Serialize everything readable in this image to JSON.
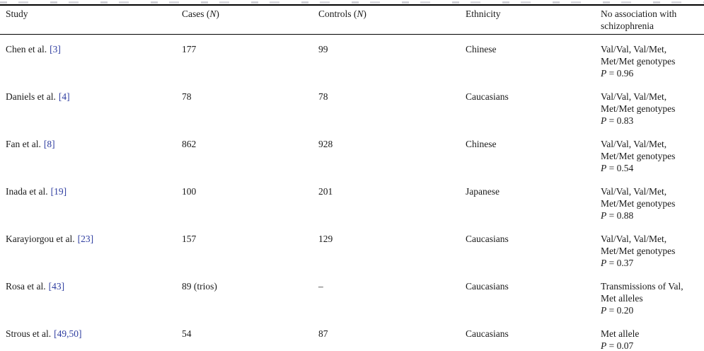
{
  "link_color": "#2e3da0",
  "table": {
    "headers": {
      "study": "Study",
      "cases_pre": "Cases (",
      "cases_n": "N",
      "cases_post": ")",
      "controls_pre": "Controls (",
      "controls_n": "N",
      "controls_post": ")",
      "ethnicity": "Ethnicity",
      "association_line1": "No association with",
      "association_line2": "schizophrenia"
    },
    "rows": [
      {
        "study": "Chen et al.",
        "ref": "[3]",
        "cases": "177",
        "controls": "99",
        "ethnicity": "Chinese",
        "assoc": {
          "lines": [
            "Val/Val, Val/Met,",
            "Met/Met genotypes"
          ],
          "p_label": "P",
          "p_value": "= 0.96"
        }
      },
      {
        "study": "Daniels et al.",
        "ref": "[4]",
        "cases": "78",
        "controls": "78",
        "ethnicity": "Caucasians",
        "assoc": {
          "lines": [
            "Val/Val, Val/Met,",
            "Met/Met genotypes"
          ],
          "p_label": "P",
          "p_value": "= 0.83"
        }
      },
      {
        "study": "Fan et al.",
        "ref": "[8]",
        "cases": "862",
        "controls": "928",
        "ethnicity": "Chinese",
        "assoc": {
          "lines": [
            "Val/Val, Val/Met,",
            "Met/Met genotypes"
          ],
          "p_label": "P",
          "p_value": "= 0.54"
        }
      },
      {
        "study": "Inada et al.",
        "ref": "[19]",
        "cases": "100",
        "controls": "201",
        "ethnicity": "Japanese",
        "assoc": {
          "lines": [
            "Val/Val, Val/Met,",
            "Met/Met genotypes"
          ],
          "p_label": "P",
          "p_value": "= 0.88"
        }
      },
      {
        "study": "Karayiorgou et al.",
        "ref": "[23]",
        "cases": "157",
        "controls": "129",
        "ethnicity": "Caucasians",
        "assoc": {
          "lines": [
            "Val/Val, Val/Met,",
            "Met/Met genotypes"
          ],
          "p_label": "P",
          "p_value": "= 0.37"
        }
      },
      {
        "study": "Rosa et al.",
        "ref": "[43]",
        "cases": "89 (trios)",
        "controls": "–",
        "ethnicity": "Caucasians",
        "assoc": {
          "lines": [
            "Transmissions of Val,",
            "Met alleles"
          ],
          "p_label": "P",
          "p_value": "= 0.20"
        }
      },
      {
        "study": "Strous et al.",
        "ref": "[49,50]",
        "cases": "54",
        "controls": "87",
        "ethnicity": "Caucasians",
        "assoc": {
          "lines": [
            "Met allele"
          ],
          "p_label": "P",
          "p_value": "= 0.07"
        }
      }
    ]
  }
}
